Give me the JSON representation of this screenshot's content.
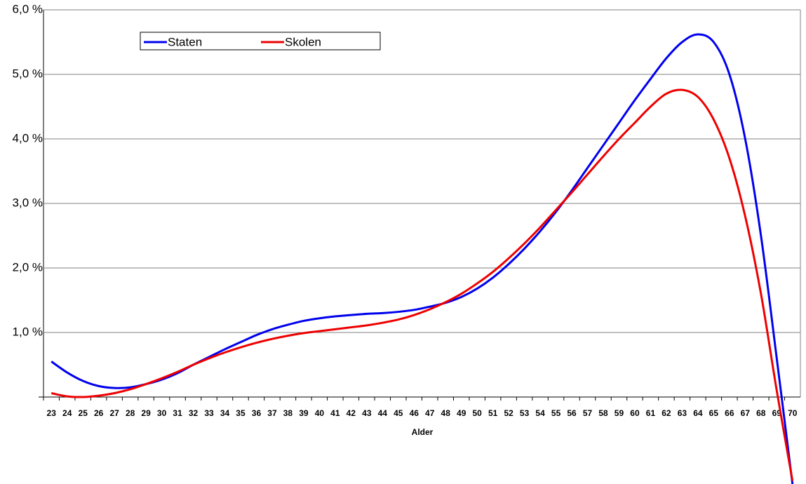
{
  "chart_data": {
    "type": "line",
    "x_label": "Alder",
    "categories": [
      "23",
      "24",
      "25",
      "26",
      "27",
      "28",
      "29",
      "30",
      "31",
      "32",
      "33",
      "34",
      "35",
      "36",
      "37",
      "38",
      "39",
      "40",
      "41",
      "42",
      "43",
      "44",
      "45",
      "46",
      "47",
      "48",
      "49",
      "50",
      "51",
      "52",
      "53",
      "54",
      "55",
      "56",
      "57",
      "58",
      "59",
      "60",
      "61",
      "62",
      "63",
      "64",
      "65",
      "66",
      "67",
      "68",
      "69",
      "70"
    ],
    "series": [
      {
        "name": "Staten",
        "color": "#0000ee",
        "values": [
          0.55,
          0.38,
          0.25,
          0.17,
          0.14,
          0.15,
          0.2,
          0.27,
          0.37,
          0.5,
          0.62,
          0.74,
          0.85,
          0.96,
          1.05,
          1.12,
          1.18,
          1.22,
          1.25,
          1.27,
          1.29,
          1.3,
          1.32,
          1.35,
          1.4,
          1.46,
          1.55,
          1.68,
          1.85,
          2.06,
          2.3,
          2.57,
          2.87,
          3.2,
          3.55,
          3.9,
          4.25,
          4.6,
          4.93,
          5.25,
          5.5,
          5.62,
          5.5,
          5.0,
          4.0,
          2.5,
          0.6,
          -1.35
        ]
      },
      {
        "name": "Skolen",
        "color": "#ee0000",
        "values": [
          0.06,
          0.01,
          0.0,
          0.02,
          0.06,
          0.12,
          0.2,
          0.29,
          0.39,
          0.5,
          0.6,
          0.69,
          0.77,
          0.84,
          0.9,
          0.95,
          0.99,
          1.02,
          1.05,
          1.08,
          1.11,
          1.15,
          1.2,
          1.27,
          1.36,
          1.47,
          1.6,
          1.76,
          1.94,
          2.15,
          2.38,
          2.63,
          2.9,
          3.17,
          3.45,
          3.73,
          4.0,
          4.25,
          4.5,
          4.7,
          4.76,
          4.65,
          4.3,
          3.7,
          2.8,
          1.6,
          0.1,
          -1.3
        ]
      }
    ],
    "ylim": [
      0,
      6
    ],
    "yticks": [
      {
        "value": 1,
        "label": "1,0 %"
      },
      {
        "value": 2,
        "label": "2,0 %"
      },
      {
        "value": 3,
        "label": "3,0 %"
      },
      {
        "value": 4,
        "label": "4,0 %"
      },
      {
        "value": 5,
        "label": "5,0 %"
      },
      {
        "value": 6,
        "label": "6,0 %"
      }
    ],
    "grid": true
  }
}
